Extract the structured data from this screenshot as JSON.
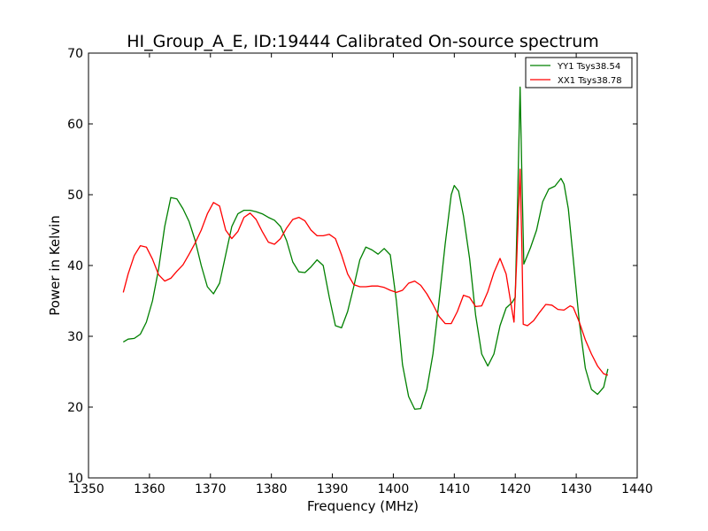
{
  "chart_data": {
    "type": "line",
    "title": "HI_Group_A_E, ID:19444 Calibrated On-source spectrum",
    "xlabel": "Frequency (MHz)",
    "ylabel": "Power in Kelvin",
    "xlim": [
      1350,
      1440
    ],
    "ylim": [
      10,
      70
    ],
    "xticks": [
      1350,
      1360,
      1370,
      1380,
      1390,
      1400,
      1410,
      1420,
      1430,
      1440
    ],
    "yticks": [
      10,
      20,
      30,
      40,
      50,
      60,
      70
    ],
    "grid": false,
    "legend_position": "top-right",
    "series": [
      {
        "name": "YY1 Tsys38.54",
        "color": "#008000",
        "points": [
          [
            1355.7,
            29.2
          ],
          [
            1356.5,
            29.6
          ],
          [
            1357.5,
            29.7
          ],
          [
            1358.5,
            30.3
          ],
          [
            1359.5,
            32.0
          ],
          [
            1360.5,
            35.0
          ],
          [
            1361.5,
            39.5
          ],
          [
            1362.5,
            45.5
          ],
          [
            1363.5,
            49.6
          ],
          [
            1364.5,
            49.4
          ],
          [
            1365.5,
            48.0
          ],
          [
            1366.5,
            46.2
          ],
          [
            1367.5,
            43.5
          ],
          [
            1368.5,
            40.0
          ],
          [
            1369.5,
            37.0
          ],
          [
            1370.5,
            36.0
          ],
          [
            1371.5,
            37.5
          ],
          [
            1372.5,
            41.5
          ],
          [
            1373.5,
            45.5
          ],
          [
            1374.5,
            47.3
          ],
          [
            1375.5,
            47.8
          ],
          [
            1376.5,
            47.8
          ],
          [
            1377.5,
            47.6
          ],
          [
            1378.5,
            47.3
          ],
          [
            1379.5,
            46.8
          ],
          [
            1380.5,
            46.4
          ],
          [
            1381.5,
            45.5
          ],
          [
            1382.5,
            43.5
          ],
          [
            1383.5,
            40.5
          ],
          [
            1384.5,
            39.1
          ],
          [
            1385.5,
            39.0
          ],
          [
            1386.5,
            39.8
          ],
          [
            1387.5,
            40.8
          ],
          [
            1388.5,
            40.0
          ],
          [
            1389.5,
            35.5
          ],
          [
            1390.5,
            31.5
          ],
          [
            1391.5,
            31.2
          ],
          [
            1392.5,
            33.5
          ],
          [
            1393.5,
            37.0
          ],
          [
            1394.5,
            40.8
          ],
          [
            1395.5,
            42.6
          ],
          [
            1396.5,
            42.2
          ],
          [
            1397.5,
            41.6
          ],
          [
            1398.5,
            42.4
          ],
          [
            1399.5,
            41.5
          ],
          [
            1400.5,
            35.0
          ],
          [
            1401.5,
            26.0
          ],
          [
            1402.5,
            21.5
          ],
          [
            1403.5,
            19.7
          ],
          [
            1404.5,
            19.8
          ],
          [
            1405.5,
            22.5
          ],
          [
            1406.5,
            27.5
          ],
          [
            1407.5,
            35.0
          ],
          [
            1408.5,
            43.0
          ],
          [
            1409.5,
            50.0
          ],
          [
            1410.0,
            51.3
          ],
          [
            1410.7,
            50.5
          ],
          [
            1411.5,
            47.0
          ],
          [
            1412.5,
            41.0
          ],
          [
            1413.5,
            33.0
          ],
          [
            1414.5,
            27.5
          ],
          [
            1415.5,
            25.8
          ],
          [
            1416.5,
            27.5
          ],
          [
            1417.5,
            31.5
          ],
          [
            1418.5,
            34.0
          ],
          [
            1419.5,
            34.8
          ],
          [
            1420.0,
            35.5
          ],
          [
            1420.4,
            50.0
          ],
          [
            1420.8,
            65.2
          ],
          [
            1421.1,
            52.0
          ],
          [
            1421.4,
            40.2
          ],
          [
            1422.5,
            42.5
          ],
          [
            1423.5,
            45.0
          ],
          [
            1424.5,
            49.0
          ],
          [
            1425.5,
            50.8
          ],
          [
            1426.5,
            51.2
          ],
          [
            1427.5,
            52.3
          ],
          [
            1428.0,
            51.5
          ],
          [
            1428.7,
            48.0
          ],
          [
            1429.5,
            41.0
          ],
          [
            1430.5,
            32.0
          ],
          [
            1431.5,
            25.5
          ],
          [
            1432.5,
            22.5
          ],
          [
            1433.5,
            21.8
          ],
          [
            1434.5,
            22.8
          ],
          [
            1435.2,
            25.4
          ]
        ]
      },
      {
        "name": "XX1 Tsys38.78",
        "color": "#ff0000",
        "points": [
          [
            1355.7,
            36.2
          ],
          [
            1356.5,
            38.8
          ],
          [
            1357.5,
            41.4
          ],
          [
            1358.5,
            42.8
          ],
          [
            1359.5,
            42.6
          ],
          [
            1360.5,
            40.9
          ],
          [
            1361.5,
            38.7
          ],
          [
            1362.5,
            37.8
          ],
          [
            1363.5,
            38.2
          ],
          [
            1364.5,
            39.2
          ],
          [
            1365.5,
            40.1
          ],
          [
            1366.5,
            41.6
          ],
          [
            1367.5,
            43.2
          ],
          [
            1368.5,
            45.0
          ],
          [
            1369.5,
            47.3
          ],
          [
            1370.5,
            48.9
          ],
          [
            1371.5,
            48.4
          ],
          [
            1372.5,
            45.0
          ],
          [
            1373.5,
            43.8
          ],
          [
            1374.5,
            44.8
          ],
          [
            1375.5,
            46.8
          ],
          [
            1376.5,
            47.4
          ],
          [
            1377.5,
            46.5
          ],
          [
            1378.5,
            44.8
          ],
          [
            1379.5,
            43.3
          ],
          [
            1380.5,
            43.0
          ],
          [
            1381.5,
            43.8
          ],
          [
            1382.5,
            45.3
          ],
          [
            1383.5,
            46.5
          ],
          [
            1384.5,
            46.8
          ],
          [
            1385.5,
            46.3
          ],
          [
            1386.5,
            45.0
          ],
          [
            1387.5,
            44.2
          ],
          [
            1388.5,
            44.2
          ],
          [
            1389.5,
            44.4
          ],
          [
            1390.5,
            43.8
          ],
          [
            1391.5,
            41.5
          ],
          [
            1392.5,
            38.8
          ],
          [
            1393.5,
            37.3
          ],
          [
            1394.5,
            37.0
          ],
          [
            1395.5,
            37.0
          ],
          [
            1396.5,
            37.1
          ],
          [
            1397.5,
            37.1
          ],
          [
            1398.5,
            36.9
          ],
          [
            1399.5,
            36.5
          ],
          [
            1400.5,
            36.2
          ],
          [
            1401.5,
            36.5
          ],
          [
            1402.5,
            37.5
          ],
          [
            1403.5,
            37.8
          ],
          [
            1404.5,
            37.2
          ],
          [
            1405.5,
            36.0
          ],
          [
            1406.5,
            34.5
          ],
          [
            1407.5,
            32.8
          ],
          [
            1408.5,
            31.8
          ],
          [
            1409.5,
            31.8
          ],
          [
            1410.5,
            33.5
          ],
          [
            1411.5,
            35.8
          ],
          [
            1412.5,
            35.5
          ],
          [
            1413.5,
            34.2
          ],
          [
            1414.5,
            34.3
          ],
          [
            1415.5,
            36.3
          ],
          [
            1416.5,
            39.0
          ],
          [
            1417.5,
            41.0
          ],
          [
            1418.5,
            38.8
          ],
          [
            1419.5,
            33.5
          ],
          [
            1419.8,
            32.0
          ],
          [
            1420.2,
            40.0
          ],
          [
            1420.8,
            53.6
          ],
          [
            1421.1,
            42.0
          ],
          [
            1421.3,
            31.7
          ],
          [
            1422.0,
            31.5
          ],
          [
            1423.0,
            32.2
          ],
          [
            1424.0,
            33.4
          ],
          [
            1425.0,
            34.5
          ],
          [
            1426.0,
            34.4
          ],
          [
            1427.0,
            33.8
          ],
          [
            1428.0,
            33.7
          ],
          [
            1429.0,
            34.3
          ],
          [
            1429.5,
            34.1
          ],
          [
            1430.5,
            32.0
          ],
          [
            1431.5,
            29.5
          ],
          [
            1432.5,
            27.5
          ],
          [
            1433.5,
            25.8
          ],
          [
            1434.5,
            24.7
          ],
          [
            1435.2,
            24.5
          ]
        ]
      }
    ]
  }
}
